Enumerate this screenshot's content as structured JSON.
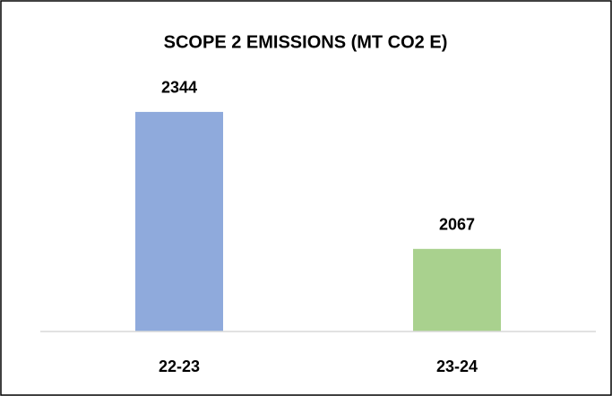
{
  "chart_data": {
    "type": "bar",
    "title": "SCOPE 2 EMISSIONS (MT CO2 E)",
    "categories": [
      "22-23",
      "23-24"
    ],
    "values": [
      2344,
      2067
    ],
    "colors": [
      "#8faadc",
      "#a9d18e"
    ],
    "ylim": [
      1900,
      2400
    ]
  }
}
